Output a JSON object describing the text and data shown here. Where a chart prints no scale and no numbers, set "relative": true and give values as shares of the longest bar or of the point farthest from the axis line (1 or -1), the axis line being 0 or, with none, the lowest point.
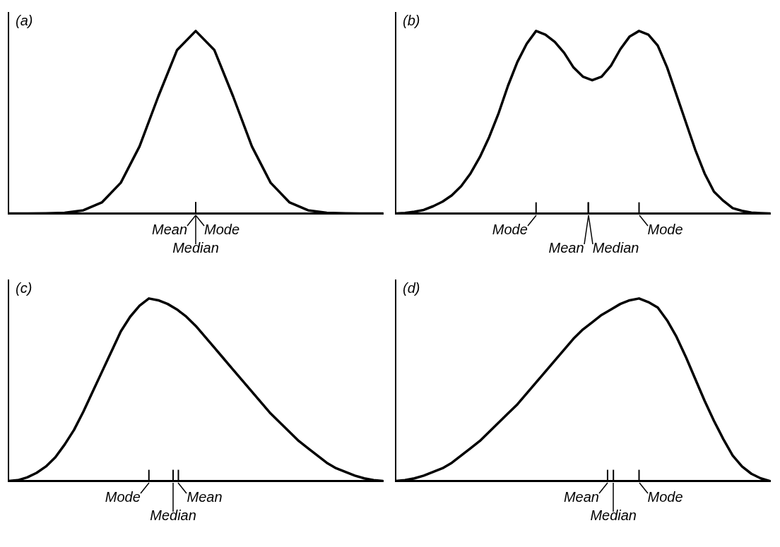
{
  "chart_data": [
    {
      "type": "line",
      "title": "(a)",
      "relative": true,
      "grid": false,
      "legend": false,
      "categories": [
        null,
        null,
        null,
        null,
        null,
        null,
        null,
        null,
        null,
        null,
        null,
        null,
        null,
        null,
        null,
        null,
        null,
        null,
        null,
        null,
        null
      ],
      "series": [
        {
          "color": "#000000",
          "values": [
            0,
            0,
            0.001,
            0.004,
            0.018,
            0.062,
            0.169,
            0.368,
            0.641,
            0.895,
            1,
            0.895,
            0.641,
            0.368,
            0.169,
            0.062,
            0.018,
            0.004,
            0.001,
            0,
            0
          ]
        }
      ],
      "annotations": [
        "Mean",
        "Median",
        "Mode"
      ]
    },
    {
      "type": "line",
      "title": "(b)",
      "relative": true,
      "grid": false,
      "legend": false,
      "categories": [
        null,
        null,
        null,
        null,
        null,
        null,
        null,
        null,
        null,
        null,
        null,
        null,
        null,
        null,
        null,
        null,
        null,
        null,
        null,
        null,
        null,
        null,
        null,
        null,
        null,
        null,
        null,
        null,
        null,
        null,
        null,
        null,
        null,
        null,
        null,
        null,
        null,
        null,
        null,
        null,
        null
      ],
      "series": [
        {
          "color": "#000000",
          "values": [
            0,
            0.003,
            0.01,
            0.02,
            0.04,
            0.065,
            0.1,
            0.15,
            0.22,
            0.31,
            0.42,
            0.55,
            0.7,
            0.83,
            0.93,
            1,
            0.98,
            0.94,
            0.88,
            0.8,
            0.75,
            0.73,
            0.75,
            0.81,
            0.9,
            0.97,
            1,
            0.98,
            0.92,
            0.8,
            0.65,
            0.5,
            0.35,
            0.22,
            0.12,
            0.07,
            0.03,
            0.015,
            0.005,
            0.002,
            0
          ]
        }
      ],
      "annotations": [
        "Mode",
        "Mean",
        "Median",
        "Mode"
      ]
    },
    {
      "type": "line",
      "title": "(c)",
      "relative": true,
      "grid": false,
      "legend": false,
      "categories": [
        null,
        null,
        null,
        null,
        null,
        null,
        null,
        null,
        null,
        null,
        null,
        null,
        null,
        null,
        null,
        null,
        null,
        null,
        null,
        null,
        null,
        null,
        null,
        null,
        null,
        null,
        null,
        null,
        null,
        null,
        null,
        null,
        null,
        null,
        null,
        null,
        null,
        null,
        null,
        null,
        null
      ],
      "series": [
        {
          "color": "#000000",
          "values": [
            0,
            0.005,
            0.02,
            0.045,
            0.08,
            0.13,
            0.2,
            0.28,
            0.38,
            0.49,
            0.6,
            0.71,
            0.82,
            0.9,
            0.96,
            1,
            0.99,
            0.97,
            0.94,
            0.9,
            0.85,
            0.79,
            0.73,
            0.67,
            0.61,
            0.55,
            0.49,
            0.43,
            0.37,
            0.32,
            0.27,
            0.22,
            0.18,
            0.14,
            0.1,
            0.07,
            0.05,
            0.03,
            0.015,
            0.005,
            0
          ]
        }
      ],
      "annotations": [
        "Mode",
        "Median",
        "Mean"
      ]
    },
    {
      "type": "line",
      "title": "(d)",
      "relative": true,
      "grid": false,
      "legend": false,
      "categories": [
        null,
        null,
        null,
        null,
        null,
        null,
        null,
        null,
        null,
        null,
        null,
        null,
        null,
        null,
        null,
        null,
        null,
        null,
        null,
        null,
        null,
        null,
        null,
        null,
        null,
        null,
        null,
        null,
        null,
        null,
        null,
        null,
        null,
        null,
        null,
        null,
        null,
        null,
        null,
        null,
        null
      ],
      "series": [
        {
          "color": "#000000",
          "values": [
            0,
            0.005,
            0.015,
            0.03,
            0.05,
            0.07,
            0.1,
            0.14,
            0.18,
            0.22,
            0.27,
            0.32,
            0.37,
            0.42,
            0.48,
            0.54,
            0.6,
            0.66,
            0.72,
            0.78,
            0.83,
            0.87,
            0.91,
            0.94,
            0.97,
            0.99,
            1,
            0.98,
            0.95,
            0.88,
            0.79,
            0.68,
            0.56,
            0.44,
            0.33,
            0.23,
            0.14,
            0.08,
            0.04,
            0.015,
            0
          ]
        }
      ],
      "annotations": [
        "Mean",
        "Median",
        "Mode"
      ]
    }
  ]
}
